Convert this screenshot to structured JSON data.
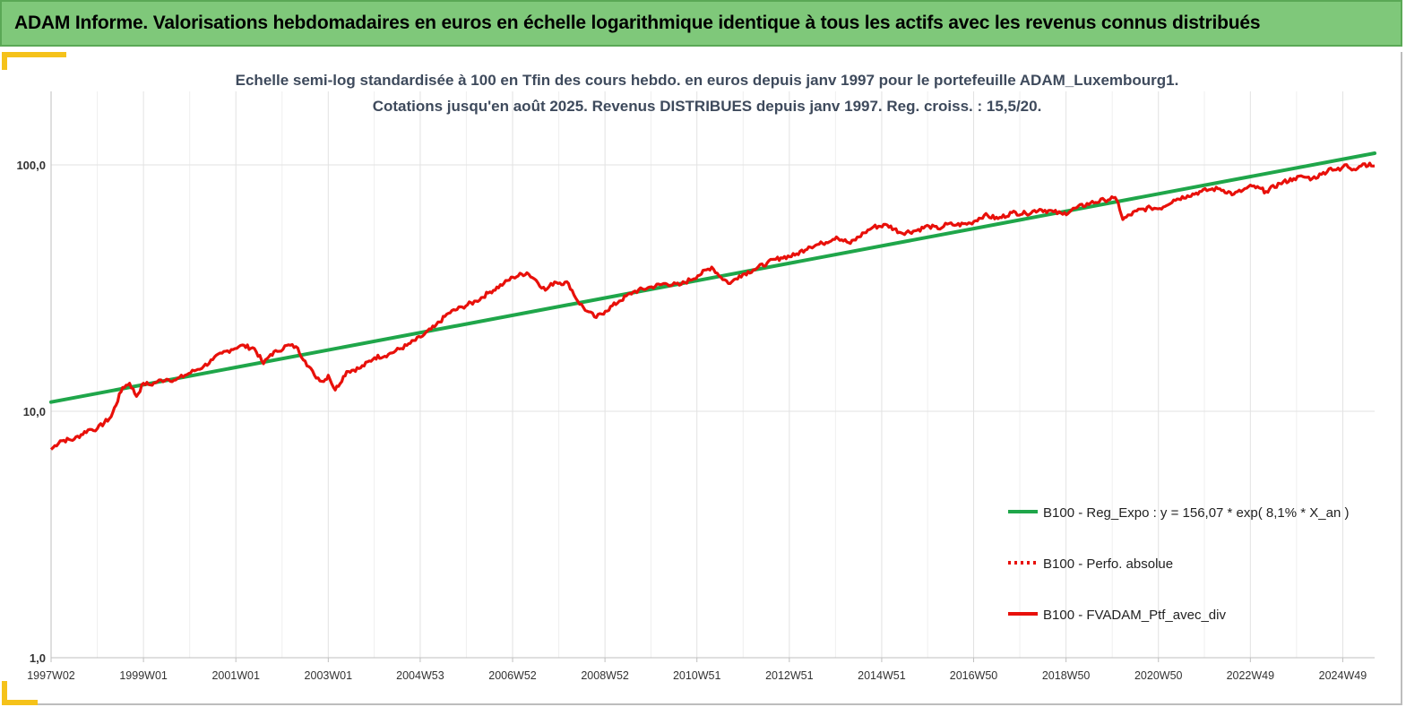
{
  "banner": {
    "title": "ADAM Informe. Valorisations hebdomadaires en euros en échelle logarithmique identique à tous les actifs avec les revenus connus distribués"
  },
  "colors": {
    "banner_bg": "#7fc87a",
    "accent": "#f5c21a",
    "regression_line": "#1fa64a",
    "portfolio_line": "#e8100a",
    "grid": "#e2e2e2"
  },
  "chart_data": {
    "type": "line",
    "title": [
      "Echelle semi-log standardisée  à 100 en Tfin des cours hebdo.  en euros depuis janv 1997 pour le portefeuille ADAM_Luxembourg1.",
      "Cotations  jusqu'en août 2025. Revenus DISTRIBUES depuis janv 1997. Reg. croiss. : 15,5/20."
    ],
    "y_scale": "log",
    "ylim": [
      1,
      200
    ],
    "xlim": [
      1997.0,
      2025.65
    ],
    "x_tick_labels": [
      "1997W02",
      "1999W01",
      "2001W01",
      "2003W01",
      "2004W53",
      "2006W52",
      "2008W52",
      "2010W51",
      "2012W51",
      "2014W51",
      "2016W50",
      "2018W50",
      "2020W50",
      "2022W49",
      "2024W49"
    ],
    "x_tick_years": [
      1997.0,
      1999.0,
      2001.0,
      2003.0,
      2004.99,
      2006.99,
      2008.99,
      2010.98,
      2012.98,
      2014.98,
      2016.97,
      2018.97,
      2020.97,
      2022.96,
      2024.96
    ],
    "y_tick_labels": [
      "1,0",
      "10,0",
      "100,0"
    ],
    "y_tick_values": [
      1,
      10,
      100
    ],
    "grid": true,
    "legend_position": "bottom-right",
    "legend": [
      {
        "label": "B100 - Reg_Expo : y = 156,07 * exp( 8,1% *  X_an )",
        "style": "solid",
        "color": "#1fa64a"
      },
      {
        "label": "B100 - Perfo. absolue",
        "style": "dotted",
        "color": "#e8100a"
      },
      {
        "label": "B100 - FVADAM_Ptf_avec_div",
        "style": "solid",
        "color": "#e8100a"
      }
    ],
    "series": [
      {
        "label": "B100 - Reg_Expo : y = 156,07 * exp( 8,1% *  X_an )",
        "x": [
          1997.0,
          2025.65
        ],
        "y": [
          10.9,
          111.5
        ]
      },
      {
        "label": "B100 - FVADAM_Ptf_avec_div",
        "x": [
          1997.0,
          1997.2,
          1997.5,
          1997.8,
          1998.0,
          1998.3,
          1998.55,
          1998.7,
          1998.85,
          1999.0,
          1999.15,
          1999.3,
          1999.5,
          1999.7,
          1999.9,
          2000.1,
          2000.3,
          2000.5,
          2000.7,
          2000.9,
          2001.1,
          2001.4,
          2001.6,
          2001.75,
          2001.9,
          2002.1,
          2002.3,
          2002.5,
          2002.7,
          2002.9,
          2003.0,
          2003.15,
          2003.4,
          2003.7,
          2004.0,
          2004.3,
          2004.7,
          2005.0,
          2005.3,
          2005.6,
          2005.9,
          2006.2,
          2006.5,
          2006.8,
          2007.0,
          2007.3,
          2007.5,
          2007.7,
          2007.9,
          2008.2,
          2008.4,
          2008.6,
          2008.8,
          2009.0,
          2009.3,
          2009.6,
          2010.0,
          2010.3,
          2010.6,
          2011.0,
          2011.3,
          2011.5,
          2011.7,
          2011.9,
          2012.2,
          2012.5,
          2012.8,
          2013.1,
          2013.4,
          2013.7,
          2014.0,
          2014.3,
          2014.6,
          2014.8,
          2015.1,
          2015.4,
          2015.7,
          2016.0,
          2016.2,
          2016.4,
          2016.6,
          2016.9,
          2017.2,
          2017.5,
          2017.8,
          2018.1,
          2018.4,
          2018.7,
          2018.9,
          2019.2,
          2019.5,
          2019.8,
          2020.0,
          2020.1,
          2020.2,
          2020.5,
          2020.8,
          2021.0,
          2021.3,
          2021.6,
          2021.9,
          2022.1,
          2022.3,
          2022.6,
          2022.8,
          2023.0,
          2023.3,
          2023.6,
          2023.9,
          2024.1,
          2024.3,
          2024.5,
          2024.7,
          2024.9,
          2025.0,
          2025.2,
          2025.4,
          2025.65
        ],
        "y": [
          7.0,
          7.6,
          7.7,
          8.4,
          8.5,
          9.5,
          12.5,
          13.0,
          11.5,
          13.0,
          12.8,
          13.2,
          13.5,
          13.4,
          14.0,
          14.6,
          15.2,
          16.2,
          17.2,
          17.8,
          18.5,
          18.0,
          15.6,
          17.0,
          17.5,
          18.5,
          18.3,
          16.0,
          14.0,
          13.2,
          14.0,
          12.2,
          14.5,
          15.0,
          16.5,
          17.0,
          18.5,
          20.0,
          22.0,
          25.0,
          26.5,
          28.0,
          30.5,
          33.0,
          35.0,
          36.5,
          34.0,
          31.0,
          33.5,
          33.0,
          28.0,
          25.5,
          24.0,
          25.5,
          28.0,
          30.5,
          32.0,
          33.0,
          32.5,
          35.5,
          38.5,
          35.0,
          33.0,
          35.5,
          37.5,
          40.0,
          42.0,
          43.0,
          46.5,
          48.0,
          51.0,
          48.0,
          53.0,
          56.0,
          57.0,
          53.0,
          54.0,
          56.5,
          55.0,
          57.5,
          57.0,
          58.0,
          62.5,
          60.5,
          64.0,
          63.5,
          66.0,
          64.5,
          63.0,
          67.0,
          70.0,
          72.0,
          73.5,
          70.0,
          60.0,
          65.0,
          67.0,
          66.5,
          72.0,
          75.0,
          78.0,
          79.5,
          80.0,
          76.0,
          79.0,
          82.0,
          78.0,
          84.0,
          88.0,
          89.5,
          88.0,
          91.5,
          97.0,
          95.0,
          100.0,
          96.0,
          101.0,
          99.0
        ]
      }
    ]
  }
}
